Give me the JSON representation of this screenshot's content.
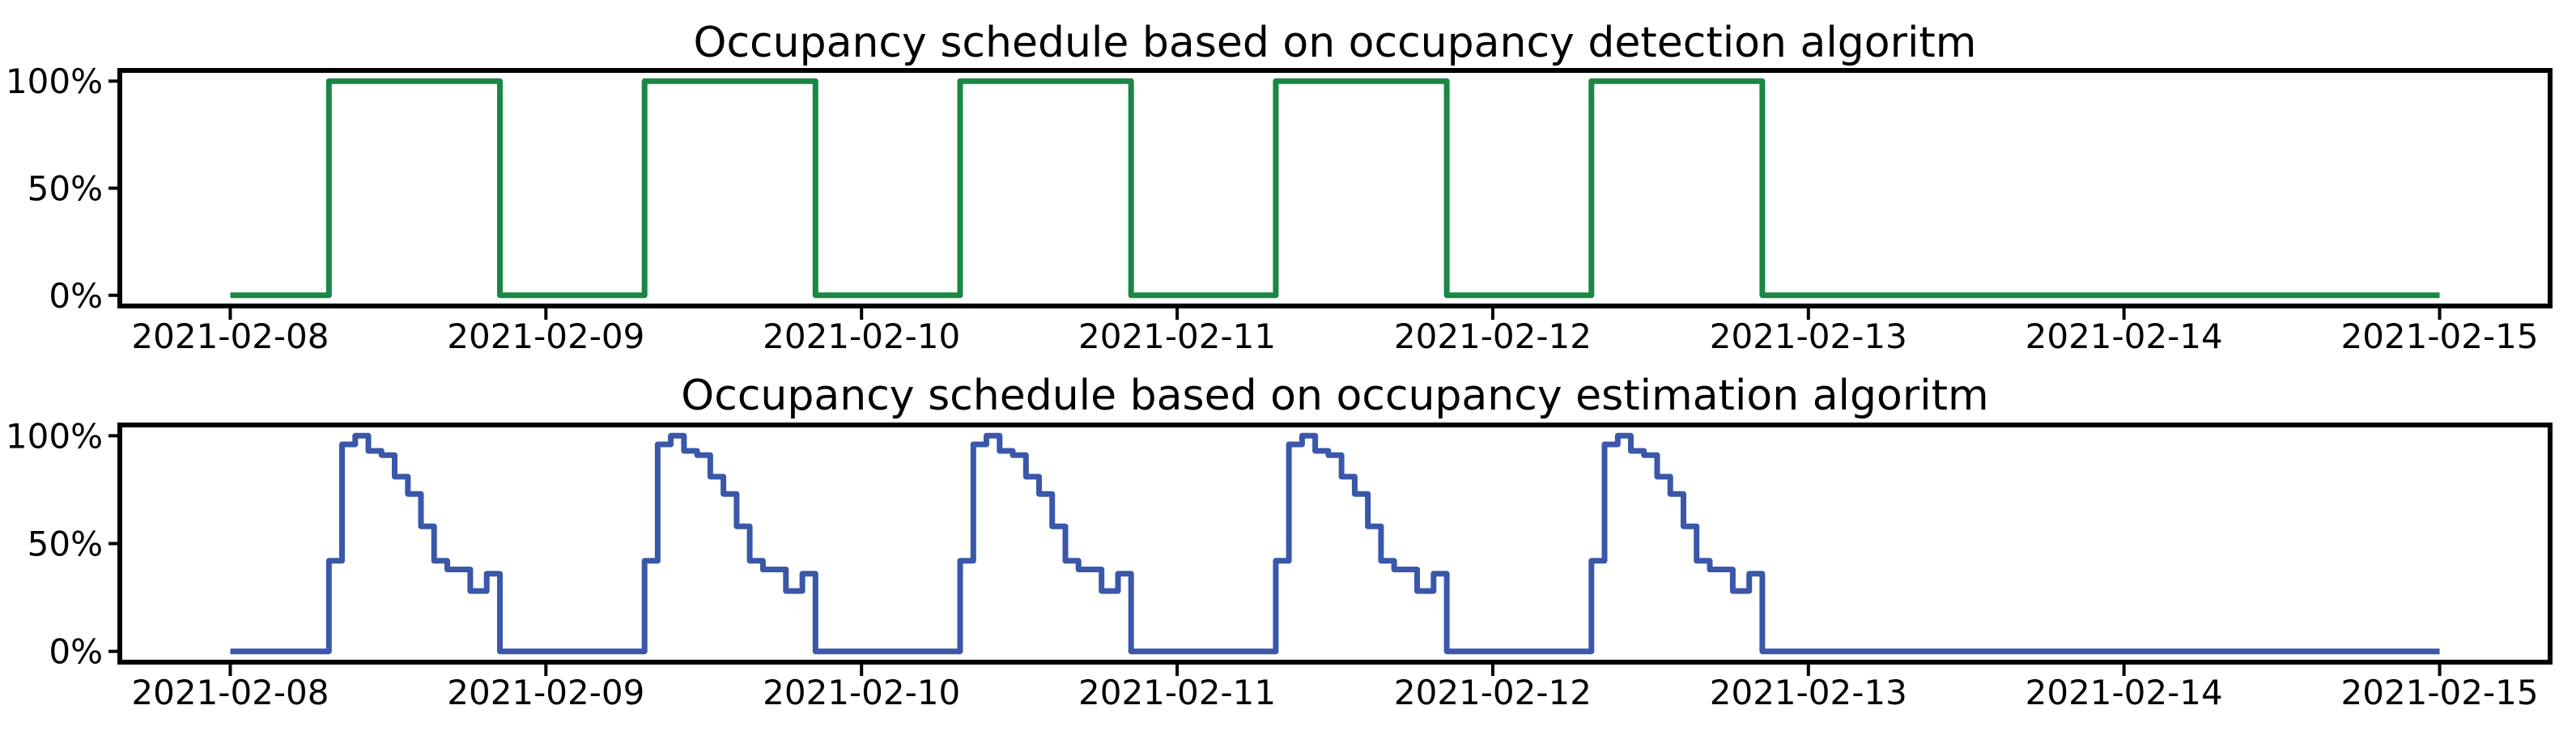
{
  "figure": {
    "background": "#ffffff",
    "text_color": "#000000",
    "axis_color": "#000000"
  },
  "chart_data": [
    {
      "type": "line",
      "subtype": "step-post",
      "title": "Occupancy schedule based on occupancy detection algoritm",
      "line_color": "#1A8744",
      "ylabel": "",
      "xlabel": "",
      "grid": false,
      "legend": null,
      "y_tick_labels": [
        "0%",
        "50%",
        "100%"
      ],
      "y_tick_values": [
        0,
        50,
        100
      ],
      "ylim": [
        -5,
        105
      ],
      "x_tick_labels": [
        "2021-02-08",
        "2021-02-09",
        "2021-02-10",
        "2021-02-11",
        "2021-02-12",
        "2021-02-13",
        "2021-02-14",
        "2021-02-15"
      ],
      "x_tick_days": [
        0,
        1,
        2,
        3,
        4,
        5,
        6,
        7
      ],
      "xlim_days": [
        -0.35,
        7.35
      ],
      "span_days": 7,
      "start_date": "2021-02-08",
      "end_date": "2021-02-15",
      "active_days": [
        "2021-02-08",
        "2021-02-09",
        "2021-02-10",
        "2021-02-11",
        "2021-02-12"
      ],
      "weekend_days": [
        "2021-02-13",
        "2021-02-14"
      ],
      "weekend_value_pct": 0,
      "daily_profile_steps": [
        {
          "start_hour": 0,
          "value_pct": 0
        },
        {
          "start_hour": 7.5,
          "value_pct": 100
        },
        {
          "start_hour": 20.5,
          "value_pct": 0
        }
      ]
    },
    {
      "type": "line",
      "subtype": "step-post",
      "title": "Occupancy schedule based on occupancy estimation algoritm",
      "line_color": "#3A57A9",
      "ylabel": "",
      "xlabel": "",
      "grid": false,
      "legend": null,
      "y_tick_labels": [
        "0%",
        "50%",
        "100%"
      ],
      "y_tick_values": [
        0,
        50,
        100
      ],
      "ylim": [
        -5,
        105
      ],
      "x_tick_labels": [
        "2021-02-08",
        "2021-02-09",
        "2021-02-10",
        "2021-02-11",
        "2021-02-12",
        "2021-02-13",
        "2021-02-14",
        "2021-02-15"
      ],
      "x_tick_days": [
        0,
        1,
        2,
        3,
        4,
        5,
        6,
        7
      ],
      "xlim_days": [
        -0.35,
        7.35
      ],
      "span_days": 7,
      "start_date": "2021-02-08",
      "end_date": "2021-02-15",
      "active_days": [
        "2021-02-08",
        "2021-02-09",
        "2021-02-10",
        "2021-02-11",
        "2021-02-12"
      ],
      "weekend_days": [
        "2021-02-13",
        "2021-02-14"
      ],
      "weekend_value_pct": 0,
      "daily_profile_steps": [
        {
          "start_hour": 0,
          "value_pct": 0
        },
        {
          "start_hour": 7.5,
          "value_pct": 42
        },
        {
          "start_hour": 8.5,
          "value_pct": 96
        },
        {
          "start_hour": 9.5,
          "value_pct": 100
        },
        {
          "start_hour": 10.5,
          "value_pct": 93
        },
        {
          "start_hour": 11.5,
          "value_pct": 91
        },
        {
          "start_hour": 12.5,
          "value_pct": 81
        },
        {
          "start_hour": 13.5,
          "value_pct": 73
        },
        {
          "start_hour": 14.5,
          "value_pct": 58
        },
        {
          "start_hour": 15.5,
          "value_pct": 42
        },
        {
          "start_hour": 16.5,
          "value_pct": 38
        },
        {
          "start_hour": 18.25,
          "value_pct": 28
        },
        {
          "start_hour": 19.5,
          "value_pct": 36
        },
        {
          "start_hour": 20.5,
          "value_pct": 0
        }
      ]
    }
  ]
}
